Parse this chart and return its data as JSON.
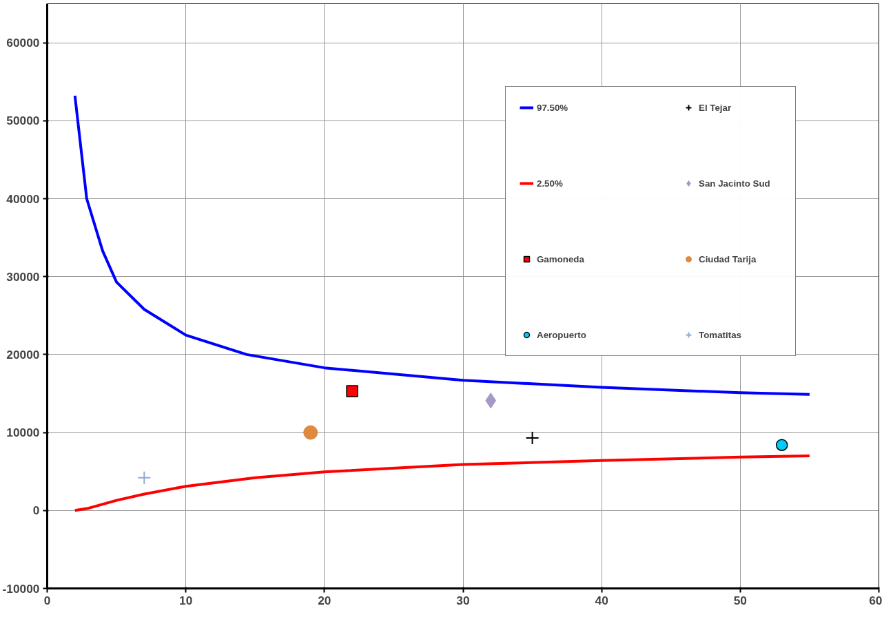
{
  "chart_data": {
    "type": "scatter",
    "xlim": [
      0,
      60
    ],
    "xticks": [
      0,
      10,
      20,
      30,
      40,
      50,
      60
    ],
    "ylim": [
      -10000,
      65000
    ],
    "yticks": [
      -10000,
      0,
      10000,
      20000,
      30000,
      40000,
      50000,
      60000
    ],
    "grid": true,
    "legend": "top right",
    "series": [
      {
        "name": "97.50%",
        "type": "line",
        "marker": "none",
        "color": "#0000ff",
        "x": [
          2,
          2.85,
          4,
          5,
          7,
          10,
          14.4,
          20,
          30,
          40,
          50,
          55
        ],
        "values": [
          53200,
          40000,
          33300,
          29300,
          25800,
          22500,
          20000,
          18300,
          16700,
          15800,
          15100,
          14900
        ]
      },
      {
        "name": "2.50%",
        "type": "line",
        "marker": "none",
        "color": "#ff0000",
        "x": [
          2,
          3,
          5,
          7,
          10,
          15,
          20,
          30,
          40,
          50,
          55
        ],
        "values": [
          0,
          300,
          1300,
          2100,
          3100,
          4200,
          4950,
          5900,
          6400,
          6850,
          7000
        ]
      },
      {
        "name": "Gamoneda",
        "marker": "square",
        "color": "#ff0000",
        "x": [
          22
        ],
        "values": [
          15300
        ]
      },
      {
        "name": "Aeropuerto",
        "marker": "circle",
        "color": "#00ccff",
        "x": [
          53
        ],
        "values": [
          8400
        ]
      },
      {
        "name": "El Tejar",
        "marker": "cross",
        "color": "#000000",
        "x": [
          35
        ],
        "values": [
          9300
        ]
      },
      {
        "name": "San Jacinto Sud",
        "marker": "diamond",
        "color": "#a699c4",
        "x": [
          32
        ],
        "values": [
          14100
        ]
      },
      {
        "name": "Ciudad Tarija",
        "marker": "circle",
        "color": "#e0883c",
        "x": [
          19
        ],
        "values": [
          10000
        ]
      },
      {
        "name": "Tomatitas",
        "marker": "cross",
        "color": "#8fa8d6",
        "x": [
          7
        ],
        "values": [
          4200
        ]
      }
    ]
  }
}
